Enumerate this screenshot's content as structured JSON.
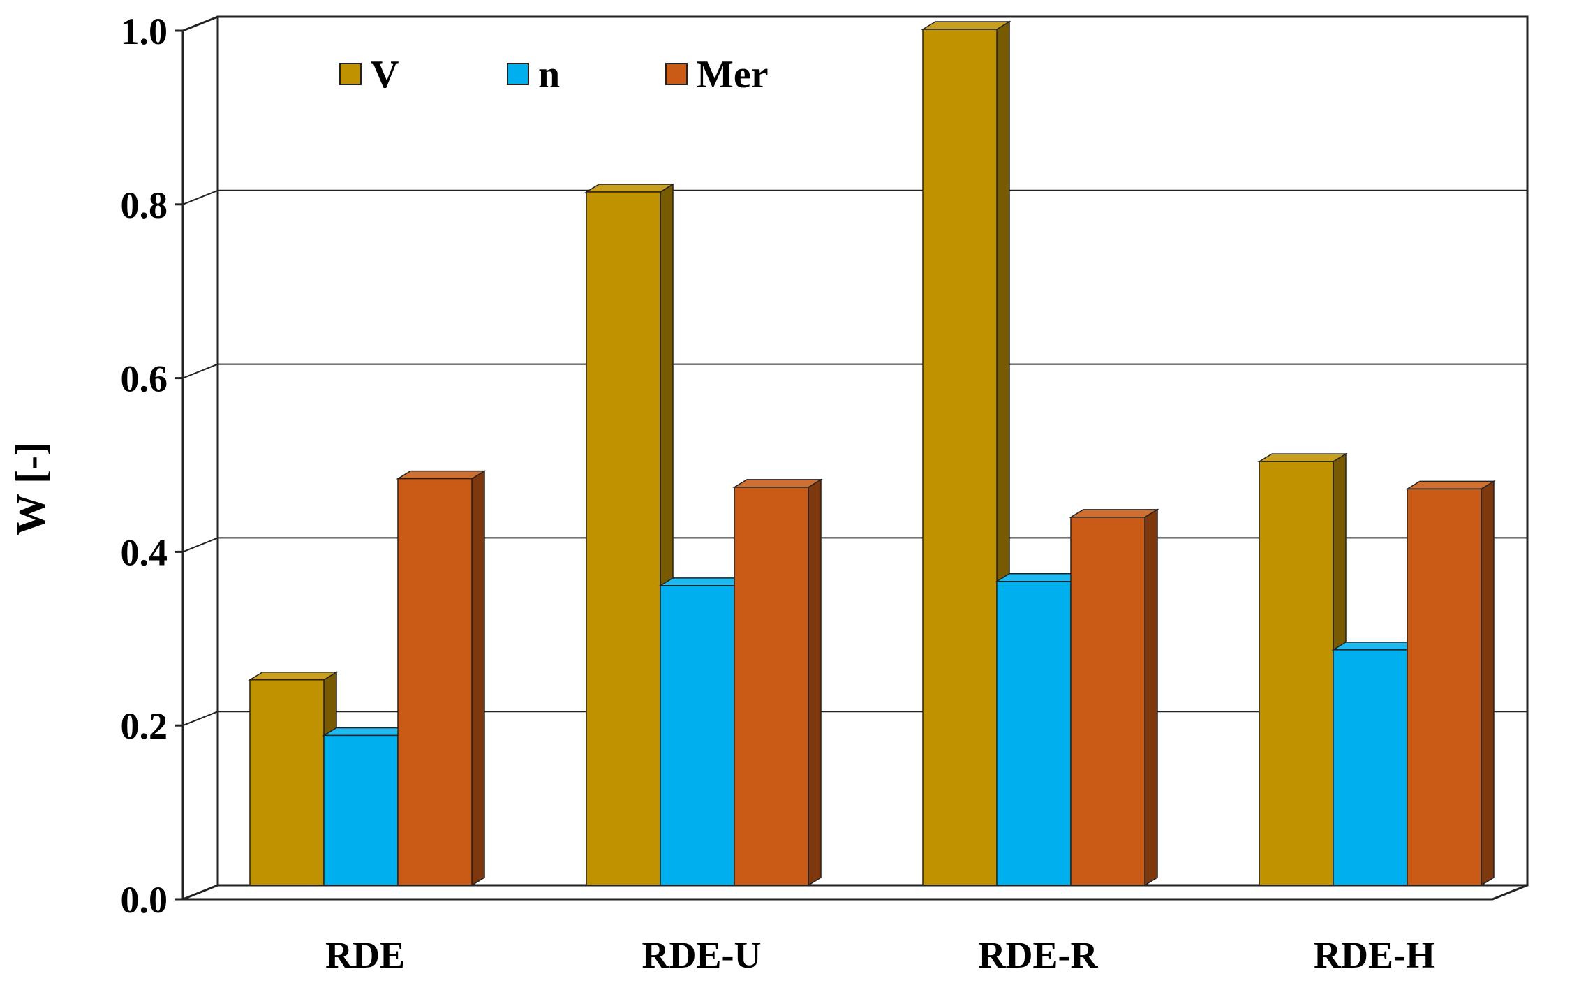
{
  "chart_data": {
    "type": "bar",
    "title": "",
    "xlabel": "",
    "ylabel": "W [-]",
    "ylim": [
      0,
      1
    ],
    "yticks": [
      "0.0",
      "0.2",
      "0.4",
      "0.6",
      "0.8",
      "1.0"
    ],
    "grid": true,
    "legend_position": "top-left",
    "categories": [
      "RDE",
      "RDE-U",
      "RDE-R",
      "RDE-H"
    ],
    "series": [
      {
        "name": "V",
        "color": "#C19200",
        "values": [
          0.24,
          0.81,
          1.0,
          0.495
        ]
      },
      {
        "name": "n",
        "color": "#00B0EE",
        "values": [
          0.175,
          0.35,
          0.355,
          0.275
        ]
      },
      {
        "name": "Mer",
        "color": "#C95B16",
        "values": [
          0.475,
          0.465,
          0.43,
          0.463
        ]
      }
    ]
  }
}
